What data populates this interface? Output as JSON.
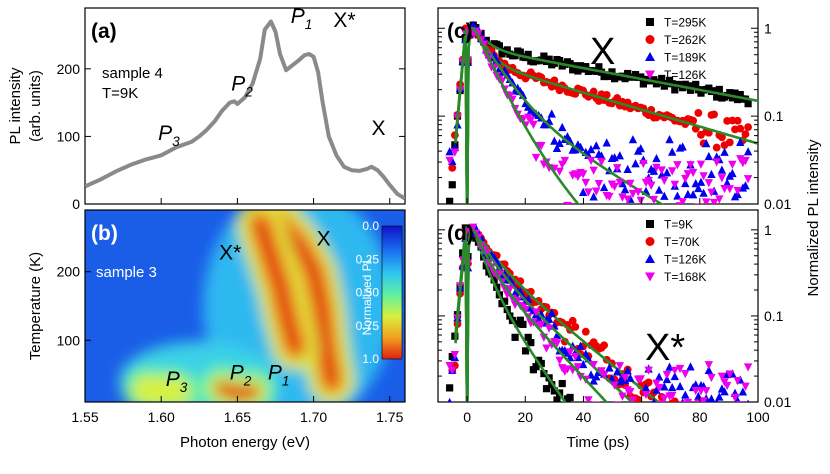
{
  "chart_data": [
    {
      "panel": "(a)",
      "type": "line",
      "title": "",
      "ylabel": "PL intensity\n(arb. units)",
      "ylabel_lines": [
        "PL intensity",
        "(arb. units)"
      ],
      "xlim": [
        1.55,
        1.76
      ],
      "ylim": [
        0,
        290
      ],
      "yticks": [
        0,
        100,
        200
      ],
      "ytick_labels": [
        "0",
        "100",
        "200"
      ],
      "annotation_text": [
        "sample 4",
        "T=9K"
      ],
      "peak_labels": [
        {
          "base": "P",
          "sub": "3",
          "x": 1.598,
          "y": 95
        },
        {
          "base": "P",
          "sub": "2",
          "x": 1.646,
          "y": 168
        },
        {
          "base": "P",
          "sub": "1",
          "x": 1.685,
          "y": 268
        },
        {
          "base": "X*",
          "sub": "",
          "x": 1.713,
          "y": 262
        },
        {
          "base": "X",
          "sub": "",
          "x": 1.738,
          "y": 102
        }
      ],
      "series": [
        {
          "name": "PL spectrum",
          "color": "#8a8a8a",
          "x": [
            1.55,
            1.555,
            1.56,
            1.565,
            1.57,
            1.575,
            1.58,
            1.585,
            1.59,
            1.595,
            1.6,
            1.605,
            1.61,
            1.615,
            1.62,
            1.625,
            1.63,
            1.635,
            1.64,
            1.645,
            1.648,
            1.65,
            1.655,
            1.66,
            1.665,
            1.668,
            1.672,
            1.675,
            1.678,
            1.682,
            1.686,
            1.69,
            1.694,
            1.697,
            1.7,
            1.703,
            1.706,
            1.71,
            1.715,
            1.72,
            1.725,
            1.73,
            1.735,
            1.738,
            1.742,
            1.746,
            1.75,
            1.755,
            1.76
          ],
          "values": [
            26,
            31,
            36,
            42,
            48,
            53,
            58,
            62,
            66,
            69,
            72,
            78,
            84,
            88,
            92,
            100,
            110,
            122,
            138,
            150,
            152,
            148,
            158,
            178,
            215,
            258,
            270,
            255,
            222,
            198,
            205,
            212,
            220,
            222,
            218,
            195,
            150,
            100,
            72,
            55,
            50,
            49,
            52,
            55,
            50,
            40,
            28,
            15,
            8
          ]
        }
      ]
    },
    {
      "panel": "(b)",
      "type": "heatmap",
      "xlabel": "Photon energy (eV)",
      "ylabel": "Temperature (K)",
      "xlim": [
        1.55,
        1.76
      ],
      "ylim": [
        10,
        290
      ],
      "xticks": [
        1.55,
        1.6,
        1.65,
        1.7,
        1.75
      ],
      "xtick_labels": [
        "1.55",
        "1.60",
        "1.65",
        "1.70",
        "1.75"
      ],
      "yticks": [
        100,
        200
      ],
      "ytick_labels": [
        "100",
        "200"
      ],
      "annotation_text": "sample 3",
      "peak_labels": [
        {
          "base": "X*",
          "sub": "",
          "x": 1.638,
          "y": 218
        },
        {
          "base": "X",
          "sub": "",
          "x": 1.702,
          "y": 238
        },
        {
          "base": "P",
          "sub": "3",
          "x": 1.603,
          "y": 33
        },
        {
          "base": "P",
          "sub": "2",
          "x": 1.645,
          "y": 43
        },
        {
          "base": "P",
          "sub": "1",
          "x": 1.67,
          "y": 43
        }
      ],
      "colorbar": {
        "label": "Normalized PL",
        "ticks": [
          "0.0",
          "0.25",
          "0.50",
          "0.75",
          "1.0"
        ],
        "colors": [
          "#1010c8",
          "#1b6cf0",
          "#30c8f0",
          "#60f0a0",
          "#d8f040",
          "#f0a020",
          "#e02010"
        ]
      },
      "hot_ridges": [
        {
          "name": "X / P1 ridge",
          "points": [
            [
              1.675,
              278
            ],
            [
              1.69,
              240
            ],
            [
              1.7,
              200
            ],
            [
              1.705,
              150
            ],
            [
              1.708,
              90
            ],
            [
              1.712,
              40
            ]
          ],
          "intensity": 1.0
        },
        {
          "name": "P1 / X* ridge",
          "points": [
            [
              1.665,
              270
            ],
            [
              1.672,
              220
            ],
            [
              1.678,
              180
            ],
            [
              1.683,
              130
            ],
            [
              1.688,
              90
            ]
          ],
          "intensity": 0.95
        },
        {
          "name": "P2 low-T",
          "points": [
            [
              1.64,
              30
            ],
            [
              1.65,
              22
            ],
            [
              1.66,
              25
            ]
          ],
          "intensity": 0.85
        },
        {
          "name": "P3 low-T",
          "points": [
            [
              1.59,
              28
            ],
            [
              1.61,
              25
            ]
          ],
          "intensity": 0.45
        }
      ]
    },
    {
      "panel": "(c)",
      "type": "scatter",
      "xlim": [
        -10,
        100
      ],
      "ylim": [
        0.01,
        1.7
      ],
      "yscale": "log",
      "yticks": [
        1,
        0.1,
        0.01
      ],
      "ytick_labels": [
        "1",
        "0.1",
        "0.01"
      ],
      "big_label": "X",
      "series": [
        {
          "name": "T=295K",
          "marker": "square",
          "color": "#000000",
          "fit_color": "#2a8a2a",
          "tau_fast": 4,
          "tau_slow": 70,
          "amp_slow": 0.45,
          "noise_floor": 0.0
        },
        {
          "name": "T=262K",
          "marker": "circle",
          "color": "#ee0000",
          "fit_color": "#2a8a2a",
          "tau_fast": 4,
          "tau_slow": 45,
          "amp_slow": 0.3,
          "noise_floor": 0.0
        },
        {
          "name": "T=189K",
          "marker": "triangle-up",
          "color": "#0000ee",
          "fit_color": "#2a8a2a",
          "tau_fast": 7,
          "tau_slow": 22,
          "amp_slow": 0.15,
          "noise_floor": 0.025
        },
        {
          "name": "T=126K",
          "marker": "triangle-down",
          "color": "#ee00ee",
          "fit_color": "#2a8a2a",
          "tau_fast": 6,
          "tau_slow": 14,
          "amp_slow": 0.08,
          "noise_floor": 0.015
        }
      ]
    },
    {
      "panel": "(d)",
      "type": "scatter",
      "xlabel": "Time (ps)",
      "xlim": [
        -10,
        100
      ],
      "xticks": [
        0,
        20,
        40,
        60,
        80,
        100
      ],
      "xtick_labels": [
        "0",
        "20",
        "40",
        "60",
        "80",
        "100"
      ],
      "ylim": [
        0.01,
        1.7
      ],
      "yscale": "log",
      "yticks": [
        1,
        0.1,
        0.01
      ],
      "ytick_labels": [
        "1",
        "0.1",
        "0.01"
      ],
      "big_label": "X*",
      "shared_ylabel": "Normalized PL intensity",
      "series": [
        {
          "name": "T=9K",
          "marker": "square",
          "color": "#000000",
          "fit_color": "#2a8a2a",
          "tau_fast": 3.5,
          "tau_slow": 9,
          "amp_slow": 0.25,
          "noise_floor": 0.0
        },
        {
          "name": "T=70K",
          "marker": "circle",
          "color": "#ee0000",
          "fit_color": "#2a8a2a",
          "tau_fast": 6,
          "tau_slow": 16,
          "amp_slow": 0.45,
          "noise_floor": 0.0
        },
        {
          "name": "T=126K",
          "marker": "triangle-up",
          "color": "#0000ee",
          "fit_color": "#2a8a2a",
          "tau_fast": 5,
          "tau_slow": 14,
          "amp_slow": 0.4,
          "noise_floor": 0.012
        },
        {
          "name": "T=168K",
          "marker": "triangle-down",
          "color": "#ee00ee",
          "fit_color": "#2a8a2a",
          "tau_fast": 4,
          "tau_slow": 12,
          "amp_slow": 0.35,
          "noise_floor": 0.013
        }
      ]
    }
  ]
}
